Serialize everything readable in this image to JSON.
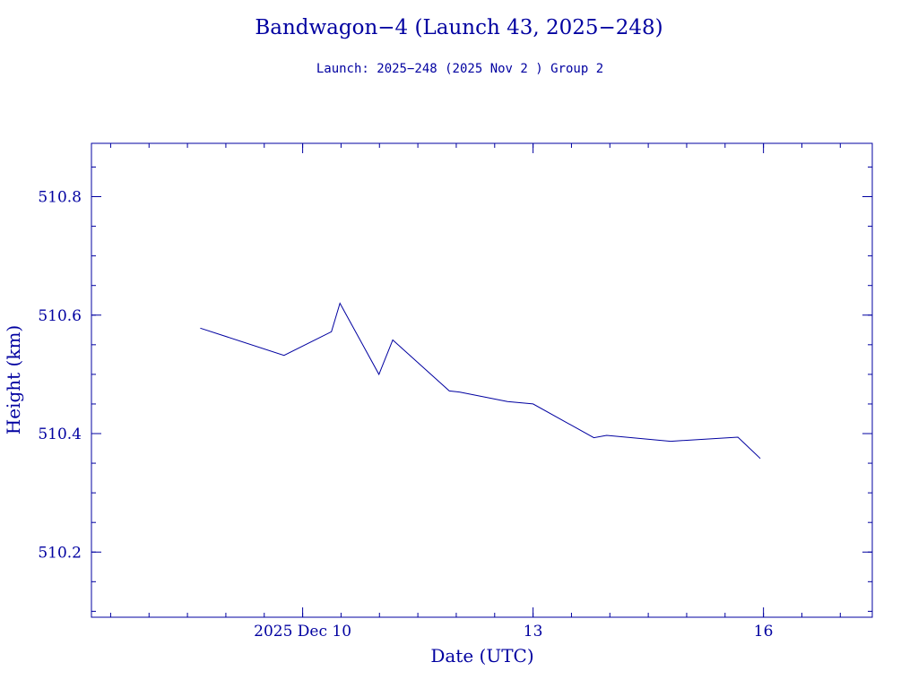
{
  "chart_data": {
    "type": "line",
    "title": "Bandwagon−4 (Launch 43, 2025−248)",
    "subtitle": "Launch: 2025−248  (2025 Nov  2 )  Group 2",
    "xlabel": "Date (UTC)",
    "ylabel": "Height (km)",
    "x_axis_type": "date",
    "xlim": [
      "2025-12-07T06:00",
      "2025-12-17T10:00"
    ],
    "ylim": [
      510.09,
      510.89
    ],
    "x_ticks": [
      {
        "date": "2025-12-10",
        "label": "2025 Dec 10"
      },
      {
        "date": "2025-12-13",
        "label": "13"
      },
      {
        "date": "2025-12-16",
        "label": "16"
      }
    ],
    "x_minor_tick_hours": 12,
    "y_ticks": [
      {
        "value": 510.2,
        "label": "510.2"
      },
      {
        "value": 510.4,
        "label": "510.4"
      },
      {
        "value": 510.6,
        "label": "510.6"
      },
      {
        "value": 510.8,
        "label": "510.8"
      }
    ],
    "y_minor_step": 0.05,
    "grid": false,
    "legend": "none",
    "colors": {
      "foreground": "#0000a0",
      "background": "#ffffff"
    },
    "series": [
      {
        "x": [
          "2025-12-08T16:00",
          "2025-12-09T18:10",
          "2025-12-10T09:00",
          "2025-12-10T11:40",
          "2025-12-10T23:50",
          "2025-12-11T04:10",
          "2025-12-11T21:50",
          "2025-12-12T01:10",
          "2025-12-12T16:00",
          "2025-12-13T00:00",
          "2025-12-13T19:00",
          "2025-12-13T23:00",
          "2025-12-14T19:00",
          "2025-12-15T16:00",
          "2025-12-15T23:00"
        ],
        "y": [
          510.578,
          510.532,
          510.572,
          510.62,
          510.5,
          510.558,
          510.472,
          510.47,
          510.454,
          510.45,
          510.393,
          510.397,
          510.387,
          510.394,
          510.358
        ]
      }
    ]
  }
}
